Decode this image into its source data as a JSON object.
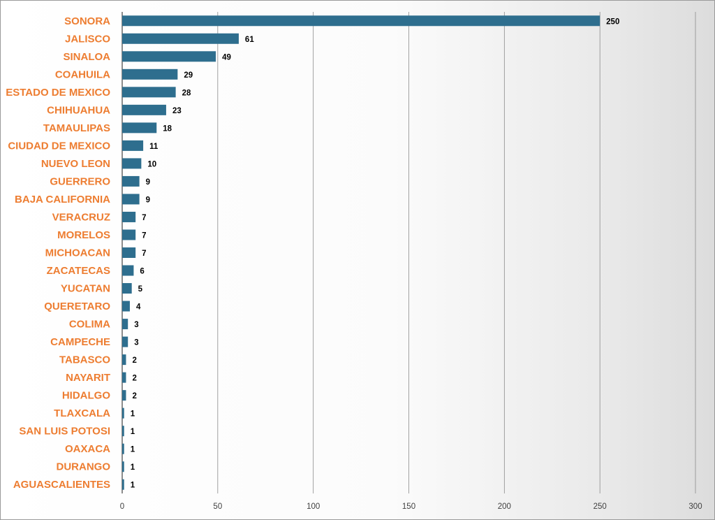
{
  "chart_data": {
    "type": "bar",
    "orientation": "horizontal",
    "title": "",
    "xlabel": "",
    "ylabel": "",
    "categories": [
      "SONORA",
      "JALISCO",
      "SINALOA",
      "COAHUILA",
      "ESTADO DE MEXICO",
      "CHIHUAHUA",
      "TAMAULIPAS",
      "CIUDAD DE MEXICO",
      "NUEVO LEON",
      "GUERRERO",
      "BAJA CALIFORNIA",
      "VERACRUZ",
      "MORELOS",
      "MICHOACAN",
      "ZACATECAS",
      "YUCATAN",
      "QUERETARO",
      "COLIMA",
      "CAMPECHE",
      "TABASCO",
      "NAYARIT",
      "HIDALGO",
      "TLAXCALA",
      "SAN LUIS POTOSI",
      "OAXACA",
      "DURANGO",
      "AGUASCALIENTES"
    ],
    "values": [
      250,
      61,
      49,
      29,
      28,
      23,
      18,
      11,
      10,
      9,
      9,
      7,
      7,
      7,
      6,
      5,
      4,
      3,
      3,
      2,
      2,
      2,
      1,
      1,
      1,
      1,
      1
    ],
    "xlim": [
      0,
      300
    ],
    "x_ticks": [
      "0",
      "50",
      "100",
      "150",
      "200",
      "250",
      "300"
    ],
    "gridlines": "vertical",
    "legend": "none",
    "colors": {
      "bar": "#2E6E8E",
      "category_label": "#ED7D31",
      "value_label": "#000000",
      "grid": "#8c8c8c",
      "tick_label": "#404040"
    }
  }
}
